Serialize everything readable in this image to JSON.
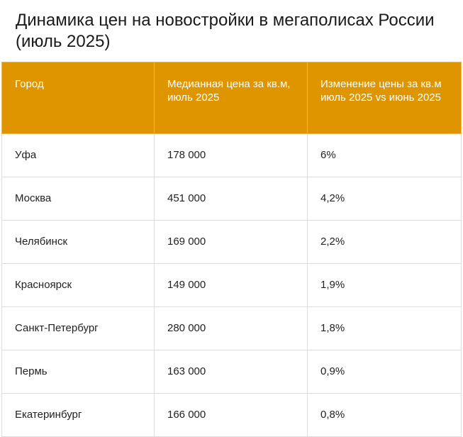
{
  "title": "Динамика цен на новостройки в мегаполисах России (июль 2025)",
  "header_color": "#df9500",
  "columns": [
    "Город",
    "Медианная цена за кв.м, июль 2025",
    "Изменение цены за кв.м июль 2025 vs июнь 2025"
  ],
  "rows": [
    [
      "Уфа",
      "178 000",
      "6%"
    ],
    [
      "Москва",
      "451 000",
      "4,2%"
    ],
    [
      "Челябинск",
      "169 000",
      "2,2%"
    ],
    [
      "Красноярск",
      "149 000",
      "1,9%"
    ],
    [
      "Санкт-Петербург",
      "280 000",
      "1,8%"
    ],
    [
      "Пермь",
      "163 000",
      "0,9%"
    ],
    [
      "Екатеринбург",
      "166 000",
      "0,8%"
    ]
  ]
}
